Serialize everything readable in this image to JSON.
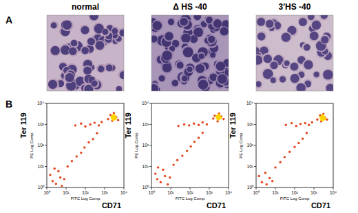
{
  "panel_a": {
    "label": "A"
  },
  "panel_b": {
    "label": "B"
  },
  "columns": [
    "normal",
    "Δ HS -40",
    "3'HS -40"
  ],
  "chart_data": [
    {
      "type": "scatter",
      "xlabel": "CD71",
      "ylabel": "Ter 119",
      "x_scale_label": "FITC Log Comp",
      "y_scale_label": "PE Log Comp",
      "log": true,
      "xlim": [
        1,
        10000
      ],
      "ylim": [
        1,
        10000
      ],
      "xticks": [
        {
          "value": 1,
          "label": "10⁰"
        },
        {
          "value": 10,
          "label": "10¹"
        },
        {
          "value": 100,
          "label": "10²"
        },
        {
          "value": 1000,
          "label": "10³"
        },
        {
          "value": 10000,
          "label": "10⁴"
        }
      ],
      "yticks": [
        {
          "value": 1,
          "label": "10⁰"
        },
        {
          "value": 10,
          "label": "10¹"
        },
        {
          "value": 100,
          "label": "10²"
        },
        {
          "value": 1000,
          "label": "10³"
        },
        {
          "value": 10000,
          "label": "10⁴"
        }
      ],
      "series": [
        {
          "color": "#e2451c",
          "marker": "circle",
          "x": [
            2,
            3,
            5,
            1.5,
            4,
            8,
            2.5,
            6,
            12,
            20,
            35,
            60,
            90,
            150,
            250,
            400,
            30,
            60,
            100,
            180,
            300,
            500,
            700,
            1500,
            2500,
            4000,
            3000,
            2000,
            5000
          ],
          "values": [
            2,
            1.5,
            3,
            4,
            6,
            2.5,
            8,
            1.2,
            10,
            18,
            30,
            45,
            80,
            140,
            200,
            380,
            900,
            1100,
            800,
            1000,
            1200,
            900,
            1300,
            1800,
            1500,
            2200,
            3500,
            2800,
            1600
          ]
        },
        {
          "color": "#ffd400",
          "marker": "circle",
          "x": [
            2500,
            3000,
            3500,
            2800
          ],
          "values": [
            2200,
            2600,
            2000,
            1800
          ]
        }
      ]
    },
    {
      "type": "scatter",
      "xlabel": "CD71",
      "ylabel": "Ter 119",
      "x_scale_label": "FITC Log Comp",
      "y_scale_label": "PE Log Comp",
      "log": true,
      "xlim": [
        1,
        10000
      ],
      "ylim": [
        1,
        10000
      ],
      "xticks": [
        {
          "value": 1,
          "label": "10⁰"
        },
        {
          "value": 10,
          "label": "10¹"
        },
        {
          "value": 100,
          "label": "10²"
        },
        {
          "value": 1000,
          "label": "10³"
        },
        {
          "value": 10000,
          "label": "10⁴"
        }
      ],
      "yticks": [
        {
          "value": 1,
          "label": "10⁰"
        },
        {
          "value": 10,
          "label": "10¹"
        },
        {
          "value": 100,
          "label": "10²"
        },
        {
          "value": 1000,
          "label": "10³"
        },
        {
          "value": 10000,
          "label": "10⁴"
        }
      ],
      "series": [
        {
          "color": "#e2451c",
          "marker": "circle",
          "x": [
            2,
            3,
            5,
            1.6,
            4,
            9,
            2.2,
            7,
            14,
            22,
            40,
            70,
            110,
            170,
            280,
            450,
            25,
            50,
            90,
            160,
            280,
            450,
            750,
            1600,
            2700,
            4200,
            3200,
            1900,
            5500
          ],
          "values": [
            2.5,
            1.8,
            3.5,
            4.5,
            7,
            3,
            9,
            1.4,
            12,
            20,
            32,
            55,
            90,
            150,
            230,
            400,
            850,
            1000,
            900,
            1100,
            950,
            1250,
            1000,
            1900,
            1400,
            2400,
            3300,
            2600,
            1800
          ]
        },
        {
          "color": "#ffd400",
          "marker": "circle",
          "x": [
            2600,
            3100,
            3600,
            2900
          ],
          "values": [
            2300,
            2700,
            2100,
            1900
          ]
        }
      ]
    },
    {
      "type": "scatter",
      "xlabel": "CD71",
      "ylabel": "Ter 119",
      "x_scale_label": "FITC Log Comp",
      "y_scale_label": "PE Log Comp",
      "log": true,
      "xlim": [
        1,
        10000
      ],
      "ylim": [
        1,
        10000
      ],
      "xticks": [
        {
          "value": 1,
          "label": "10⁰"
        },
        {
          "value": 10,
          "label": "10¹"
        },
        {
          "value": 100,
          "label": "10²"
        },
        {
          "value": 1000,
          "label": "10³"
        },
        {
          "value": 10000,
          "label": "10⁴"
        }
      ],
      "yticks": [
        {
          "value": 1,
          "label": "10⁰"
        },
        {
          "value": 10,
          "label": "10¹"
        },
        {
          "value": 100,
          "label": "10²"
        },
        {
          "value": 1000,
          "label": "10³"
        },
        {
          "value": 10000,
          "label": "10⁴"
        }
      ],
      "series": [
        {
          "color": "#e2451c",
          "marker": "circle",
          "x": [
            2,
            3.5,
            5,
            1.4,
            3,
            7,
            10,
            18,
            30,
            55,
            100,
            160,
            260,
            420,
            35,
            70,
            120,
            200,
            350,
            550,
            800,
            1500,
            2400,
            3800,
            3100,
            2100,
            4800
          ],
          "values": [
            1.8,
            1.4,
            2.8,
            3.5,
            5,
            2,
            9,
            16,
            28,
            50,
            85,
            130,
            210,
            390,
            950,
            1150,
            850,
            1050,
            1150,
            950,
            1250,
            1700,
            1400,
            2100,
            3200,
            2700,
            1700
          ]
        },
        {
          "color": "#ffd400",
          "marker": "circle",
          "x": [
            2400,
            2900,
            3400,
            2700
          ],
          "values": [
            2100,
            2500,
            1900,
            1700
          ]
        }
      ]
    }
  ]
}
